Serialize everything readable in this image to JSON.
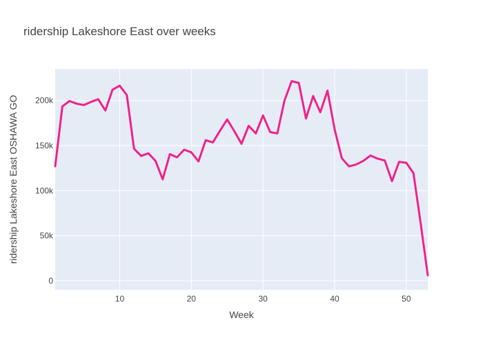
{
  "chart_data": {
    "type": "line",
    "title": "ridership Lakeshore East over weeks",
    "xlabel": "Week",
    "ylabel": "ridership Lakeshore East OSHAWA GO",
    "xlim": [
      1,
      53
    ],
    "ylim": [
      -10000,
      235000
    ],
    "grid": true,
    "background": "#E5ECF6",
    "x_ticks": [
      10,
      20,
      30,
      40,
      50
    ],
    "x_tick_labels": [
      "10",
      "20",
      "30",
      "40",
      "50"
    ],
    "y_ticks": [
      0,
      50000,
      100000,
      150000,
      200000
    ],
    "y_tick_labels": [
      "0",
      "50k",
      "100k",
      "150k",
      "200k"
    ],
    "series": [
      {
        "color": "#F0218A",
        "x": [
          1,
          2,
          3,
          4,
          5,
          6,
          7,
          8,
          9,
          10,
          11,
          12,
          13,
          14,
          15,
          16,
          17,
          18,
          19,
          20,
          21,
          22,
          23,
          24,
          25,
          26,
          27,
          28,
          29,
          30,
          31,
          32,
          33,
          34,
          35,
          36,
          37,
          38,
          39,
          40,
          41,
          42,
          43,
          44,
          45,
          46,
          47,
          48,
          49,
          50,
          51,
          52,
          53
        ],
        "y": [
          127000,
          193500,
          199500,
          196500,
          195000,
          198500,
          201500,
          189000,
          212000,
          216500,
          206000,
          146500,
          138500,
          141500,
          133000,
          112500,
          140500,
          137000,
          145500,
          142500,
          132500,
          156000,
          153500,
          166500,
          179000,
          166000,
          152000,
          172000,
          163500,
          183500,
          165000,
          163500,
          200000,
          221500,
          219500,
          180000,
          205000,
          187000,
          211000,
          168000,
          136000,
          127000,
          129000,
          133000,
          139000,
          135500,
          133500,
          110500,
          132000,
          131000,
          119500,
          64000,
          6000
        ]
      }
    ]
  }
}
